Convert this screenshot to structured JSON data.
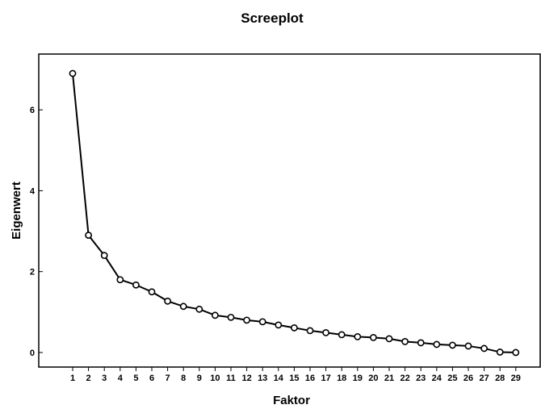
{
  "chart_data": {
    "type": "line",
    "title": "Screeplot",
    "xlabel": "Faktor",
    "ylabel": "Eigenwert",
    "x": [
      "1",
      "2",
      "3",
      "4",
      "5",
      "6",
      "7",
      "8",
      "9",
      "10",
      "11",
      "12",
      "13",
      "14",
      "15",
      "16",
      "17",
      "18",
      "19",
      "20",
      "21",
      "22",
      "23",
      "24",
      "25",
      "26",
      "27",
      "28",
      "29"
    ],
    "values": [
      6.9,
      2.9,
      2.4,
      1.8,
      1.67,
      1.5,
      1.27,
      1.14,
      1.07,
      0.92,
      0.87,
      0.8,
      0.76,
      0.68,
      0.61,
      0.54,
      0.49,
      0.44,
      0.39,
      0.37,
      0.34,
      0.27,
      0.24,
      0.2,
      0.18,
      0.16,
      0.1,
      0.01,
      0.0
    ],
    "y_ticks": [
      "0",
      "2",
      "4",
      "6"
    ],
    "ylim": [
      -0.36,
      7.38
    ],
    "grid": false,
    "marker": "circle",
    "colors": {
      "line": "#000000",
      "marker_stroke": "#000000",
      "marker_fill": "#ffffff",
      "frame": "#000000",
      "background": "#ffffff"
    }
  }
}
